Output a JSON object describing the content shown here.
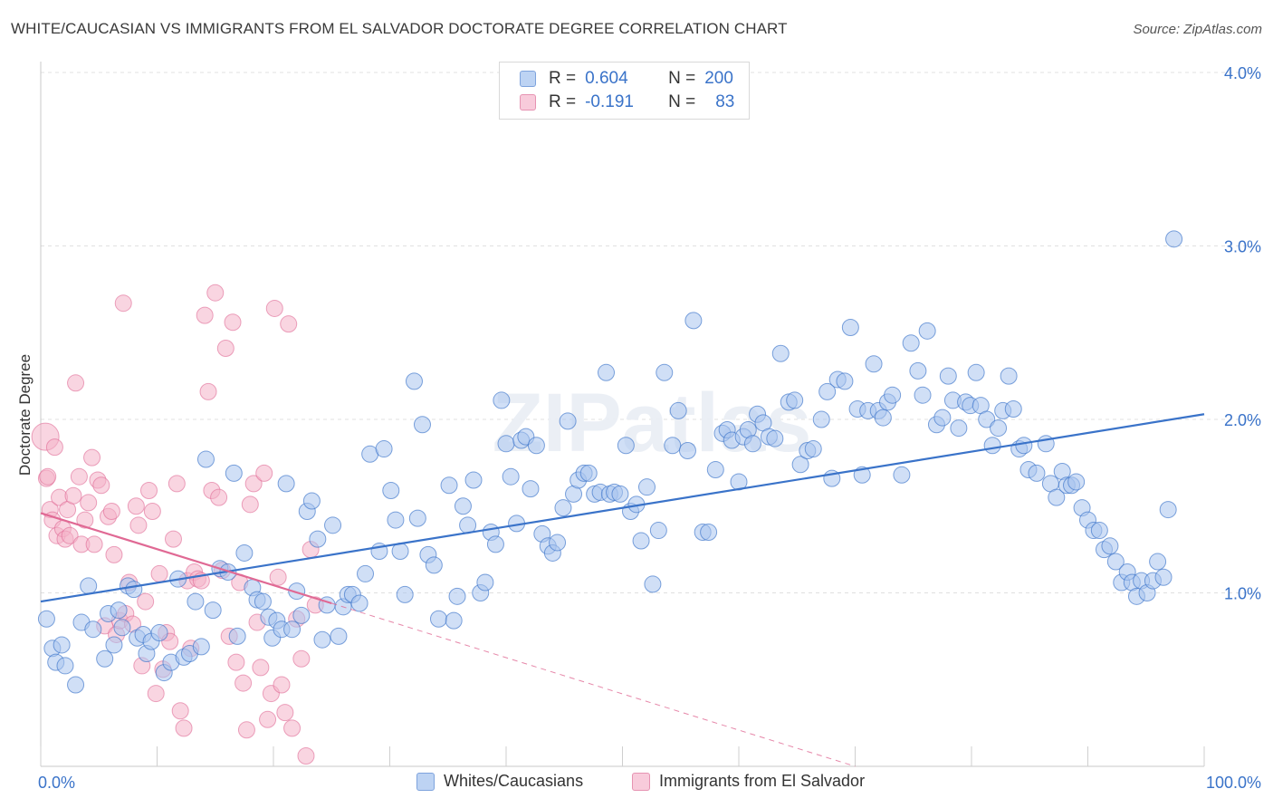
{
  "title": "WHITE/CAUCASIAN VS IMMIGRANTS FROM EL SALVADOR DOCTORATE DEGREE CORRELATION CHART",
  "source": "Source: ZipAtlas.com",
  "watermark": "ZIPatlas",
  "colors": {
    "blue": "#3a73c9",
    "blue_fill": "#a9c5ef",
    "pink": "#e06994",
    "pink_fill": "#f4b3c9",
    "axis_text": "#3a73c9",
    "grid": "#e0e0e0"
  },
  "legend": {
    "rows": [
      {
        "r_label": "R =",
        "r_value": "0.604",
        "n_label": "N =",
        "n_value": "200"
      },
      {
        "r_label": "R =",
        "r_value": "-0.191",
        "n_label": "N =",
        "n_value": "83"
      }
    ]
  },
  "bottom_legend": [
    "Whites/Caucasians",
    "Immigrants from El Salvador"
  ],
  "chart_data": {
    "type": "scatter",
    "title": "WHITE/CAUCASIAN VS IMMIGRANTS FROM EL SALVADOR DOCTORATE DEGREE CORRELATION CHART",
    "xlabel": "",
    "ylabel": "Doctorate Degree",
    "xlim": [
      0,
      100
    ],
    "ylim": [
      0,
      4.2
    ],
    "x_tick_labels": [
      "0.0%",
      "100.0%"
    ],
    "y_ticks": [
      1.0,
      2.0,
      3.0,
      4.0
    ],
    "y_tick_labels": [
      "1.0%",
      "2.0%",
      "3.0%",
      "4.0%"
    ],
    "grid": true,
    "legend_position": "top-center",
    "series": [
      {
        "name": "Whites/Caucasians",
        "color": "#3a73c9",
        "trend": {
          "x": [
            0,
            100
          ],
          "y": [
            0.95,
            2.03
          ]
        },
        "points": [
          [
            0.5,
            0.85
          ],
          [
            1.0,
            0.68
          ],
          [
            1.3,
            0.6
          ],
          [
            1.8,
            0.7
          ],
          [
            2.1,
            0.58
          ],
          [
            3.0,
            0.47
          ],
          [
            3.5,
            0.83
          ],
          [
            4.1,
            1.04
          ],
          [
            4.5,
            0.79
          ],
          [
            5.5,
            0.62
          ],
          [
            5.8,
            0.88
          ],
          [
            6.3,
            0.7
          ],
          [
            6.7,
            0.9
          ],
          [
            7.0,
            0.8
          ],
          [
            7.5,
            1.04
          ],
          [
            8.0,
            1.02
          ],
          [
            8.3,
            0.74
          ],
          [
            8.8,
            0.76
          ],
          [
            9.1,
            0.65
          ],
          [
            9.5,
            0.72
          ],
          [
            10.2,
            0.77
          ],
          [
            10.6,
            0.54
          ],
          [
            11.2,
            0.6
          ],
          [
            11.8,
            1.08
          ],
          [
            12.3,
            0.63
          ],
          [
            12.8,
            0.65
          ],
          [
            13.3,
            0.95
          ],
          [
            13.8,
            0.69
          ],
          [
            14.2,
            1.77
          ],
          [
            14.8,
            0.9
          ],
          [
            15.4,
            1.14
          ],
          [
            16.1,
            1.12
          ],
          [
            16.6,
            1.69
          ],
          [
            16.9,
            0.75
          ],
          [
            17.5,
            1.23
          ],
          [
            18.2,
            1.03
          ],
          [
            18.6,
            0.96
          ],
          [
            19.1,
            0.95
          ],
          [
            19.6,
            0.86
          ],
          [
            19.9,
            0.74
          ],
          [
            20.3,
            0.84
          ],
          [
            20.7,
            0.79
          ],
          [
            21.1,
            1.63
          ],
          [
            21.6,
            0.79
          ],
          [
            22.0,
            1.01
          ],
          [
            22.4,
            0.87
          ],
          [
            22.9,
            1.47
          ],
          [
            23.3,
            1.53
          ],
          [
            23.8,
            1.31
          ],
          [
            24.2,
            0.73
          ],
          [
            24.6,
            0.93
          ],
          [
            25.1,
            1.39
          ],
          [
            25.6,
            0.75
          ],
          [
            26.0,
            0.92
          ],
          [
            26.4,
            0.99
          ],
          [
            26.8,
            0.99
          ],
          [
            27.4,
            0.94
          ],
          [
            27.9,
            1.11
          ],
          [
            28.3,
            1.8
          ],
          [
            29.1,
            1.24
          ],
          [
            29.5,
            1.83
          ],
          [
            30.1,
            1.59
          ],
          [
            30.5,
            1.42
          ],
          [
            30.9,
            1.24
          ],
          [
            31.3,
            0.99
          ],
          [
            32.1,
            2.22
          ],
          [
            32.4,
            1.43
          ],
          [
            32.8,
            1.97
          ],
          [
            33.3,
            1.22
          ],
          [
            33.8,
            1.16
          ],
          [
            34.2,
            0.85
          ],
          [
            35.1,
            1.62
          ],
          [
            35.5,
            0.84
          ],
          [
            35.8,
            0.98
          ],
          [
            36.3,
            1.5
          ],
          [
            36.7,
            1.39
          ],
          [
            37.2,
            1.65
          ],
          [
            37.8,
            1.0
          ],
          [
            38.2,
            1.06
          ],
          [
            38.7,
            1.35
          ],
          [
            39.1,
            1.28
          ],
          [
            39.6,
            2.11
          ],
          [
            40.0,
            1.86
          ],
          [
            40.4,
            1.67
          ],
          [
            40.9,
            1.4
          ],
          [
            41.3,
            1.88
          ],
          [
            41.7,
            1.9
          ],
          [
            42.1,
            1.6
          ],
          [
            42.6,
            1.85
          ],
          [
            43.1,
            1.34
          ],
          [
            43.6,
            1.27
          ],
          [
            44.0,
            1.23
          ],
          [
            44.4,
            1.29
          ],
          [
            44.9,
            1.49
          ],
          [
            45.3,
            1.99
          ],
          [
            45.8,
            1.57
          ],
          [
            46.2,
            1.65
          ],
          [
            46.7,
            1.69
          ],
          [
            47.1,
            1.69
          ],
          [
            47.6,
            1.57
          ],
          [
            48.1,
            1.58
          ],
          [
            48.6,
            2.27
          ],
          [
            48.9,
            1.57
          ],
          [
            49.3,
            1.58
          ],
          [
            49.8,
            1.57
          ],
          [
            50.3,
            1.85
          ],
          [
            50.7,
            1.47
          ],
          [
            51.2,
            1.51
          ],
          [
            51.6,
            1.3
          ],
          [
            52.1,
            1.61
          ],
          [
            52.6,
            1.05
          ],
          [
            53.1,
            1.36
          ],
          [
            53.6,
            2.27
          ],
          [
            54.3,
            1.85
          ],
          [
            54.8,
            2.05
          ],
          [
            55.6,
            1.82
          ],
          [
            56.1,
            2.57
          ],
          [
            56.9,
            1.35
          ],
          [
            57.4,
            1.35
          ],
          [
            58.0,
            1.71
          ],
          [
            58.6,
            1.92
          ],
          [
            59.0,
            1.94
          ],
          [
            59.4,
            1.88
          ],
          [
            60.0,
            1.64
          ],
          [
            60.4,
            1.9
          ],
          [
            60.8,
            1.94
          ],
          [
            61.2,
            1.86
          ],
          [
            61.6,
            2.03
          ],
          [
            62.1,
            1.98
          ],
          [
            62.6,
            1.9
          ],
          [
            63.1,
            1.89
          ],
          [
            63.6,
            2.38
          ],
          [
            64.3,
            2.1
          ],
          [
            64.8,
            2.11
          ],
          [
            65.3,
            1.74
          ],
          [
            65.9,
            1.82
          ],
          [
            66.4,
            1.83
          ],
          [
            67.1,
            2.0
          ],
          [
            67.6,
            2.16
          ],
          [
            68.0,
            1.66
          ],
          [
            68.5,
            2.23
          ],
          [
            69.1,
            2.22
          ],
          [
            69.6,
            2.53
          ],
          [
            70.2,
            2.06
          ],
          [
            70.6,
            1.68
          ],
          [
            71.1,
            2.05
          ],
          [
            71.6,
            2.32
          ],
          [
            72.0,
            2.05
          ],
          [
            72.4,
            2.01
          ],
          [
            72.8,
            2.1
          ],
          [
            73.2,
            2.14
          ],
          [
            74.0,
            1.68
          ],
          [
            74.8,
            2.44
          ],
          [
            75.4,
            2.28
          ],
          [
            75.8,
            2.14
          ],
          [
            76.2,
            2.51
          ],
          [
            77.0,
            1.97
          ],
          [
            77.5,
            2.01
          ],
          [
            78.0,
            2.25
          ],
          [
            78.4,
            2.11
          ],
          [
            78.9,
            1.95
          ],
          [
            79.5,
            2.1
          ],
          [
            79.9,
            2.08
          ],
          [
            80.4,
            2.27
          ],
          [
            80.8,
            2.08
          ],
          [
            81.3,
            2.0
          ],
          [
            81.8,
            1.85
          ],
          [
            82.3,
            1.95
          ],
          [
            82.7,
            2.05
          ],
          [
            83.2,
            2.25
          ],
          [
            83.6,
            2.06
          ],
          [
            84.1,
            1.83
          ],
          [
            84.5,
            1.85
          ],
          [
            84.9,
            1.71
          ],
          [
            85.6,
            1.69
          ],
          [
            86.4,
            1.86
          ],
          [
            86.8,
            1.63
          ],
          [
            87.3,
            1.55
          ],
          [
            87.8,
            1.7
          ],
          [
            88.2,
            1.62
          ],
          [
            88.6,
            1.62
          ],
          [
            89.0,
            1.64
          ],
          [
            89.5,
            1.49
          ],
          [
            90.0,
            1.42
          ],
          [
            90.5,
            1.36
          ],
          [
            91.0,
            1.36
          ],
          [
            91.4,
            1.25
          ],
          [
            91.9,
            1.27
          ],
          [
            92.4,
            1.18
          ],
          [
            92.9,
            1.06
          ],
          [
            93.4,
            1.12
          ],
          [
            93.8,
            1.06
          ],
          [
            94.2,
            0.98
          ],
          [
            94.6,
            1.07
          ],
          [
            95.1,
            1.0
          ],
          [
            95.6,
            1.07
          ],
          [
            96.0,
            1.18
          ],
          [
            96.5,
            1.09
          ],
          [
            96.9,
            1.48
          ],
          [
            97.4,
            3.04
          ]
        ]
      },
      {
        "name": "Immigrants from El Salvador",
        "color": "#e06994",
        "trend": {
          "x": [
            0,
            25
          ],
          "y": [
            1.46,
            0.94
          ]
        },
        "trend_extension": {
          "x": [
            25,
            70
          ],
          "y": [
            0.94,
            0.0
          ]
        },
        "points": [
          [
            0.4,
            1.9
          ],
          [
            0.5,
            1.66
          ],
          [
            0.6,
            1.67
          ],
          [
            0.8,
            1.48
          ],
          [
            1.0,
            1.42
          ],
          [
            1.2,
            1.84
          ],
          [
            1.4,
            1.33
          ],
          [
            1.6,
            1.55
          ],
          [
            1.9,
            1.37
          ],
          [
            2.1,
            1.31
          ],
          [
            2.3,
            1.48
          ],
          [
            2.5,
            1.33
          ],
          [
            2.8,
            1.56
          ],
          [
            3.0,
            2.21
          ],
          [
            3.3,
            1.67
          ],
          [
            3.5,
            1.28
          ],
          [
            3.8,
            1.42
          ],
          [
            4.1,
            1.52
          ],
          [
            4.4,
            1.78
          ],
          [
            4.6,
            1.28
          ],
          [
            4.9,
            1.65
          ],
          [
            5.2,
            1.62
          ],
          [
            5.5,
            0.81
          ],
          [
            5.8,
            1.44
          ],
          [
            6.1,
            1.47
          ],
          [
            6.3,
            1.22
          ],
          [
            6.5,
            0.76
          ],
          [
            6.8,
            0.84
          ],
          [
            7.1,
            2.67
          ],
          [
            7.3,
            0.88
          ],
          [
            7.6,
            1.06
          ],
          [
            7.9,
            0.82
          ],
          [
            8.2,
            1.5
          ],
          [
            8.4,
            1.39
          ],
          [
            8.7,
            0.58
          ],
          [
            9.0,
            0.95
          ],
          [
            9.3,
            1.59
          ],
          [
            9.6,
            1.47
          ],
          [
            9.9,
            0.42
          ],
          [
            10.2,
            1.11
          ],
          [
            10.5,
            0.56
          ],
          [
            10.8,
            0.77
          ],
          [
            11.1,
            0.72
          ],
          [
            11.4,
            1.31
          ],
          [
            11.7,
            1.63
          ],
          [
            12.0,
            0.32
          ],
          [
            12.3,
            0.22
          ],
          [
            12.6,
            1.07
          ],
          [
            12.9,
            0.68
          ],
          [
            13.2,
            1.12
          ],
          [
            13.5,
            1.08
          ],
          [
            13.8,
            1.07
          ],
          [
            14.1,
            2.6
          ],
          [
            14.4,
            2.16
          ],
          [
            14.7,
            1.59
          ],
          [
            15.0,
            2.73
          ],
          [
            15.3,
            1.55
          ],
          [
            15.6,
            1.13
          ],
          [
            15.9,
            2.41
          ],
          [
            16.2,
            0.75
          ],
          [
            16.5,
            2.56
          ],
          [
            16.8,
            0.6
          ],
          [
            17.1,
            1.06
          ],
          [
            17.4,
            0.48
          ],
          [
            17.7,
            0.21
          ],
          [
            18.0,
            1.51
          ],
          [
            18.3,
            1.63
          ],
          [
            18.6,
            0.83
          ],
          [
            18.9,
            0.57
          ],
          [
            19.2,
            1.69
          ],
          [
            19.5,
            0.27
          ],
          [
            19.8,
            0.42
          ],
          [
            20.1,
            2.64
          ],
          [
            20.4,
            1.09
          ],
          [
            20.7,
            0.47
          ],
          [
            21.0,
            0.31
          ],
          [
            21.3,
            2.55
          ],
          [
            21.6,
            0.22
          ],
          [
            22.0,
            0.85
          ],
          [
            22.4,
            0.62
          ],
          [
            22.8,
            0.06
          ],
          [
            23.2,
            1.25
          ],
          [
            23.6,
            0.93
          ]
        ]
      }
    ]
  }
}
